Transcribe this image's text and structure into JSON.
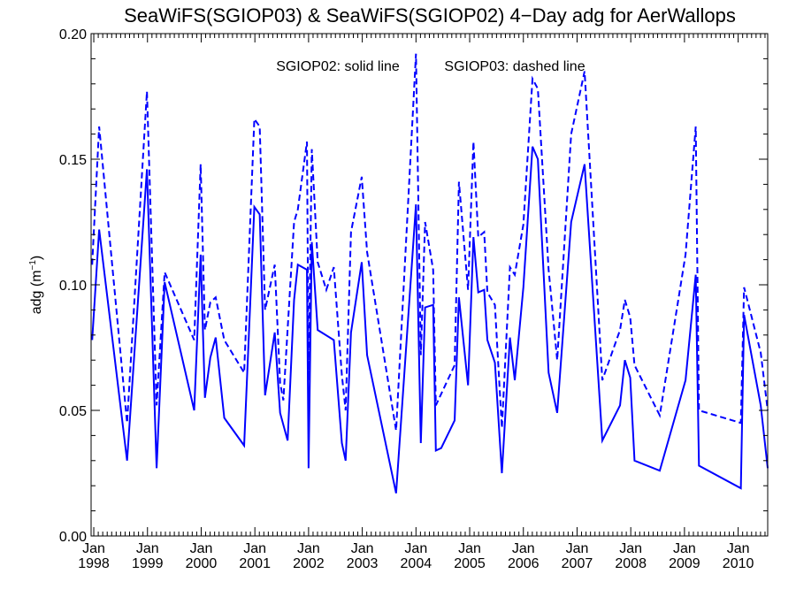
{
  "chart_data": {
    "type": "line",
    "title": "SeaWiFS(SGIOP03) & SeaWiFS(SGIOP02) 4−Day adg for AerWallops",
    "annotation_solid": "SGIOP02: solid line",
    "annotation_dashed": "SGIOP03: dashed line",
    "ylabel_main": "adg (m",
    "ylabel_sup": "−1",
    "ylabel_close": ")",
    "ylim": [
      0.0,
      0.2
    ],
    "yticks": [
      "0.00",
      "0.05",
      "0.10",
      "0.15",
      "0.20"
    ],
    "xlim": [
      1997.95,
      2010.55
    ],
    "xticks_month": [
      "Jan",
      "Jan",
      "Jan",
      "Jan",
      "Jan",
      "Jan",
      "Jan",
      "Jan",
      "Jan",
      "Jan",
      "Jan",
      "Jan",
      "Jan"
    ],
    "xticks_year": [
      "1998",
      "1999",
      "2000",
      "2001",
      "2002",
      "2003",
      "2004",
      "2005",
      "2006",
      "2007",
      "2008",
      "2009",
      "2010"
    ],
    "grid": false,
    "color": "#0000ff",
    "series": [
      {
        "name": "SGIOP02",
        "style": "solid",
        "points": [
          [
            1997.97,
            0.078
          ],
          [
            1998.1,
            0.122
          ],
          [
            1998.62,
            0.03
          ],
          [
            1998.99,
            0.146
          ],
          [
            1999.17,
            0.027
          ],
          [
            1999.32,
            0.101
          ],
          [
            1999.87,
            0.05
          ],
          [
            1999.99,
            0.112
          ],
          [
            2000.07,
            0.055
          ],
          [
            2000.17,
            0.071
          ],
          [
            2000.27,
            0.079
          ],
          [
            2000.43,
            0.047
          ],
          [
            2000.8,
            0.036
          ],
          [
            2000.99,
            0.131
          ],
          [
            2001.09,
            0.128
          ],
          [
            2001.19,
            0.056
          ],
          [
            2001.37,
            0.081
          ],
          [
            2001.47,
            0.049
          ],
          [
            2001.61,
            0.038
          ],
          [
            2001.73,
            0.094
          ],
          [
            2001.8,
            0.108
          ],
          [
            2001.97,
            0.106
          ],
          [
            2002.0,
            0.027
          ],
          [
            2002.06,
            0.117
          ],
          [
            2002.17,
            0.082
          ],
          [
            2002.47,
            0.078
          ],
          [
            2002.62,
            0.037
          ],
          [
            2002.69,
            0.03
          ],
          [
            2002.79,
            0.081
          ],
          [
            2002.99,
            0.109
          ],
          [
            2003.09,
            0.072
          ],
          [
            2003.63,
            0.017
          ],
          [
            2004.0,
            0.132
          ],
          [
            2004.09,
            0.037
          ],
          [
            2004.17,
            0.091
          ],
          [
            2004.32,
            0.092
          ],
          [
            2004.37,
            0.034
          ],
          [
            2004.47,
            0.035
          ],
          [
            2004.72,
            0.046
          ],
          [
            2004.8,
            0.095
          ],
          [
            2004.97,
            0.06
          ],
          [
            2005.07,
            0.119
          ],
          [
            2005.16,
            0.097
          ],
          [
            2005.27,
            0.098
          ],
          [
            2005.33,
            0.078
          ],
          [
            2005.47,
            0.069
          ],
          [
            2005.6,
            0.025
          ],
          [
            2005.75,
            0.079
          ],
          [
            2005.84,
            0.062
          ],
          [
            2006.0,
            0.099
          ],
          [
            2006.17,
            0.155
          ],
          [
            2006.27,
            0.15
          ],
          [
            2006.47,
            0.065
          ],
          [
            2006.63,
            0.049
          ],
          [
            2006.89,
            0.125
          ],
          [
            2007.14,
            0.148
          ],
          [
            2007.47,
            0.038
          ],
          [
            2007.8,
            0.052
          ],
          [
            2007.89,
            0.07
          ],
          [
            2007.99,
            0.063
          ],
          [
            2008.07,
            0.03
          ],
          [
            2008.54,
            0.026
          ],
          [
            2009.02,
            0.062
          ],
          [
            2009.21,
            0.104
          ],
          [
            2009.27,
            0.028
          ],
          [
            2010.05,
            0.019
          ],
          [
            2010.11,
            0.088
          ],
          [
            2010.42,
            0.052
          ],
          [
            2010.55,
            0.027
          ]
        ]
      },
      {
        "name": "SGIOP03",
        "style": "dashed",
        "points": [
          [
            1997.97,
            0.108
          ],
          [
            1998.1,
            0.163
          ],
          [
            1998.62,
            0.045
          ],
          [
            1998.99,
            0.177
          ],
          [
            1999.17,
            0.052
          ],
          [
            1999.32,
            0.105
          ],
          [
            1999.87,
            0.078
          ],
          [
            1999.99,
            0.148
          ],
          [
            2000.07,
            0.082
          ],
          [
            2000.17,
            0.093
          ],
          [
            2000.27,
            0.095
          ],
          [
            2000.43,
            0.078
          ],
          [
            2000.8,
            0.065
          ],
          [
            2000.99,
            0.166
          ],
          [
            2001.09,
            0.163
          ],
          [
            2001.19,
            0.09
          ],
          [
            2001.37,
            0.108
          ],
          [
            2001.47,
            0.061
          ],
          [
            2001.53,
            0.054
          ],
          [
            2001.73,
            0.125
          ],
          [
            2001.8,
            0.13
          ],
          [
            2001.97,
            0.157
          ],
          [
            2002.0,
            0.062
          ],
          [
            2002.06,
            0.154
          ],
          [
            2002.17,
            0.109
          ],
          [
            2002.33,
            0.098
          ],
          [
            2002.47,
            0.107
          ],
          [
            2002.62,
            0.064
          ],
          [
            2002.69,
            0.05
          ],
          [
            2002.79,
            0.121
          ],
          [
            2002.99,
            0.143
          ],
          [
            2003.09,
            0.113
          ],
          [
            2003.63,
            0.042
          ],
          [
            2004.0,
            0.192
          ],
          [
            2004.09,
            0.072
          ],
          [
            2004.17,
            0.125
          ],
          [
            2004.32,
            0.106
          ],
          [
            2004.37,
            0.052
          ],
          [
            2004.72,
            0.068
          ],
          [
            2004.8,
            0.141
          ],
          [
            2004.97,
            0.098
          ],
          [
            2005.07,
            0.157
          ],
          [
            2005.16,
            0.119
          ],
          [
            2005.27,
            0.121
          ],
          [
            2005.33,
            0.097
          ],
          [
            2005.47,
            0.092
          ],
          [
            2005.6,
            0.043
          ],
          [
            2005.75,
            0.107
          ],
          [
            2005.84,
            0.104
          ],
          [
            2006.0,
            0.124
          ],
          [
            2006.17,
            0.182
          ],
          [
            2006.27,
            0.178
          ],
          [
            2006.47,
            0.106
          ],
          [
            2006.63,
            0.07
          ],
          [
            2006.89,
            0.16
          ],
          [
            2007.14,
            0.185
          ],
          [
            2007.47,
            0.062
          ],
          [
            2007.8,
            0.082
          ],
          [
            2007.89,
            0.094
          ],
          [
            2007.99,
            0.087
          ],
          [
            2008.07,
            0.068
          ],
          [
            2008.54,
            0.048
          ],
          [
            2009.02,
            0.112
          ],
          [
            2009.21,
            0.163
          ],
          [
            2009.27,
            0.05
          ],
          [
            2010.05,
            0.045
          ],
          [
            2010.11,
            0.099
          ],
          [
            2010.42,
            0.073
          ],
          [
            2010.55,
            0.05
          ]
        ]
      }
    ]
  }
}
